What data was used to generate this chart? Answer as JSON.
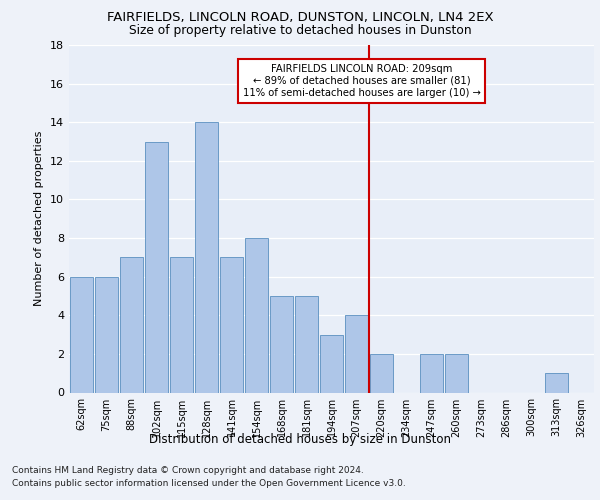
{
  "title1": "FAIRFIELDS, LINCOLN ROAD, DUNSTON, LINCOLN, LN4 2EX",
  "title2": "Size of property relative to detached houses in Dunston",
  "xlabel": "Distribution of detached houses by size in Dunston",
  "ylabel": "Number of detached properties",
  "footnote1": "Contains HM Land Registry data © Crown copyright and database right 2024.",
  "footnote2": "Contains public sector information licensed under the Open Government Licence v3.0.",
  "annotation_line1": "FAIRFIELDS LINCOLN ROAD: 209sqm",
  "annotation_line2": "← 89% of detached houses are smaller (81)",
  "annotation_line3": "11% of semi-detached houses are larger (10) →",
  "bar_labels": [
    "62sqm",
    "75sqm",
    "88sqm",
    "102sqm",
    "115sqm",
    "128sqm",
    "141sqm",
    "154sqm",
    "168sqm",
    "181sqm",
    "194sqm",
    "207sqm",
    "220sqm",
    "234sqm",
    "247sqm",
    "260sqm",
    "273sqm",
    "286sqm",
    "300sqm",
    "313sqm",
    "326sqm"
  ],
  "bar_values": [
    6,
    6,
    7,
    13,
    7,
    14,
    7,
    8,
    5,
    5,
    3,
    4,
    2,
    0,
    2,
    2,
    0,
    0,
    0,
    1,
    0
  ],
  "bar_color": "#aec6e8",
  "bar_edge_color": "#5a8fc0",
  "vline_x_index": 11.5,
  "vline_color": "#cc0000",
  "ylim": [
    0,
    18
  ],
  "yticks": [
    0,
    2,
    4,
    6,
    8,
    10,
    12,
    14,
    16,
    18
  ],
  "bg_color": "#eef2f9",
  "plot_bg_color": "#e8eef8",
  "annotation_box_color": "#cc0000",
  "grid_color": "#ffffff"
}
